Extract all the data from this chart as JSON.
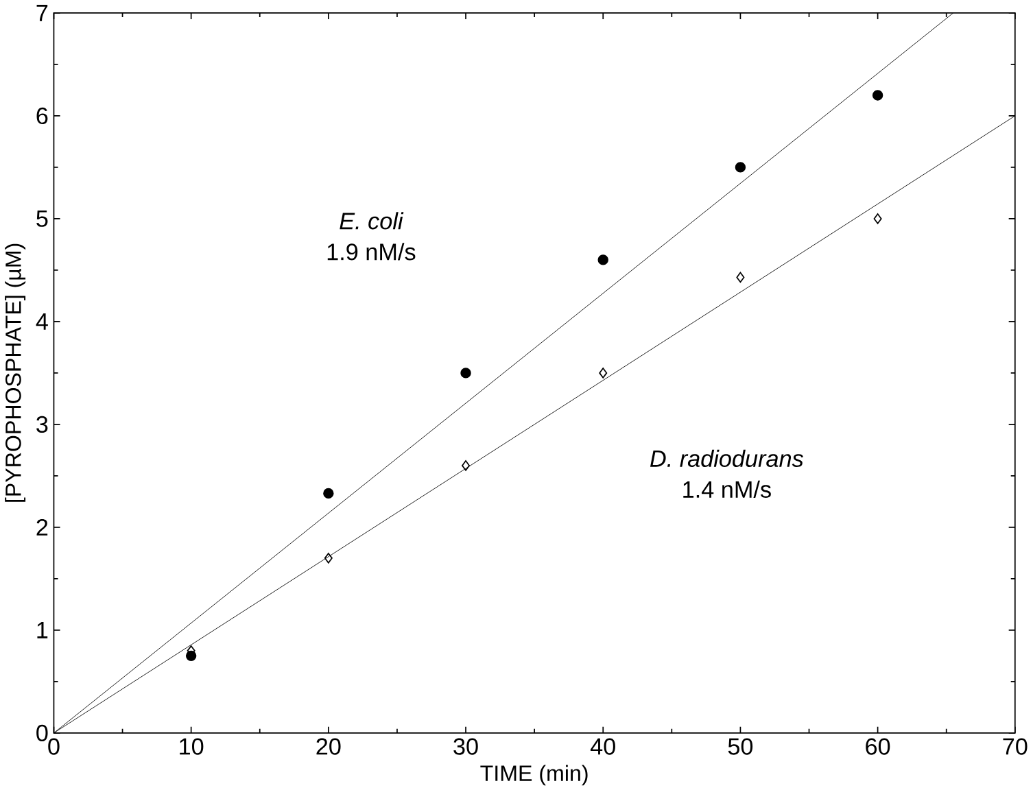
{
  "chart_data": {
    "type": "scatter",
    "xlabel": "TIME   (min)",
    "ylabel": "[PYROPHOSPHATE]   (µM)",
    "xlim": [
      0,
      70
    ],
    "ylim": [
      0,
      7
    ],
    "xticks": [
      0,
      10,
      20,
      30,
      40,
      50,
      60,
      70
    ],
    "yticks": [
      0,
      1,
      2,
      3,
      4,
      5,
      6,
      7
    ],
    "series": [
      {
        "marker": "circle",
        "color": "#000000",
        "x": [
          10,
          20,
          30,
          40,
          50,
          60
        ],
        "values": [
          0.75,
          2.33,
          3.5,
          4.6,
          5.5,
          6.2
        ]
      },
      {
        "type": "line",
        "color": "#000000",
        "x": [
          0,
          65.5
        ],
        "values": [
          0,
          7
        ]
      },
      {
        "marker": "diamond",
        "color": "#000000",
        "x": [
          10,
          20,
          30,
          40,
          50,
          60
        ],
        "values": [
          0.8,
          1.7,
          2.6,
          3.5,
          4.43,
          5.0
        ]
      },
      {
        "type": "line",
        "color": "#000000",
        "x": [
          0,
          70
        ],
        "values": [
          0,
          6
        ]
      }
    ],
    "annotations": [
      "E. coli",
      "1.9 nM/s",
      "D. radiodurans",
      "1.4 nM/s"
    ]
  }
}
